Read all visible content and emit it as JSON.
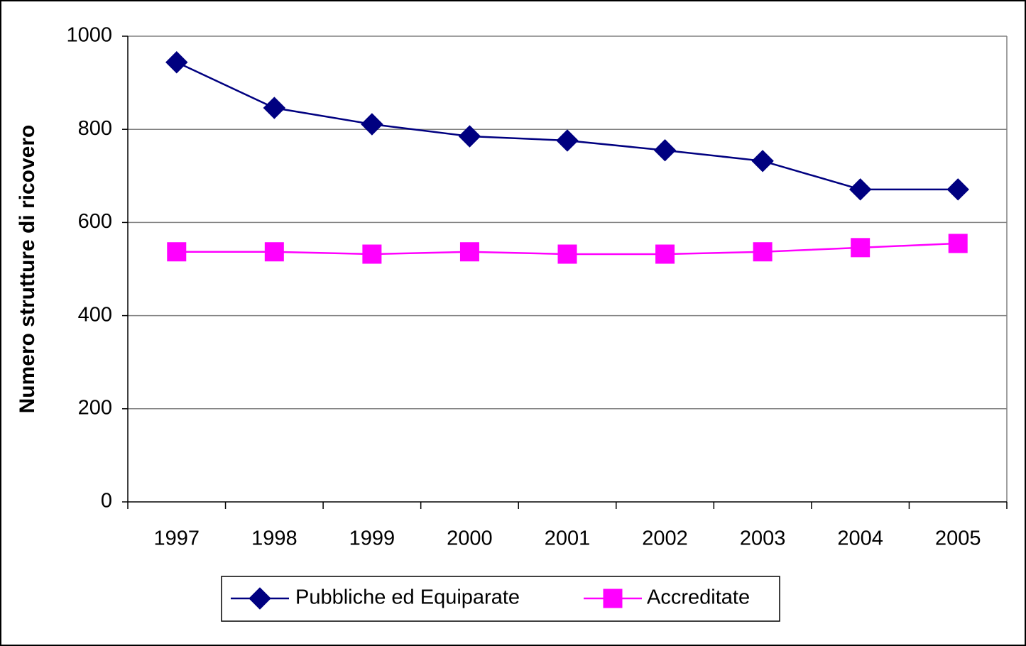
{
  "chart_data": {
    "type": "line",
    "y_label": "Numero strutture di ricovero",
    "categories": [
      "1997",
      "1998",
      "1999",
      "2000",
      "2001",
      "2002",
      "2003",
      "2004",
      "2005"
    ],
    "series": [
      {
        "name": "Pubbliche ed Equiparate",
        "color": "#000080",
        "marker": "diamond",
        "values": [
          944,
          846,
          811,
          785,
          776,
          755,
          732,
          671,
          671
        ]
      },
      {
        "name": "Accreditate",
        "color": "#ff00ff",
        "marker": "square",
        "values": [
          537,
          537,
          532,
          537,
          532,
          532,
          537,
          546,
          555
        ]
      }
    ],
    "ylim": [
      0,
      1000
    ],
    "yticks": [
      0,
      200,
      400,
      600,
      800,
      1000
    ],
    "grid": true,
    "legend": "bottom"
  }
}
